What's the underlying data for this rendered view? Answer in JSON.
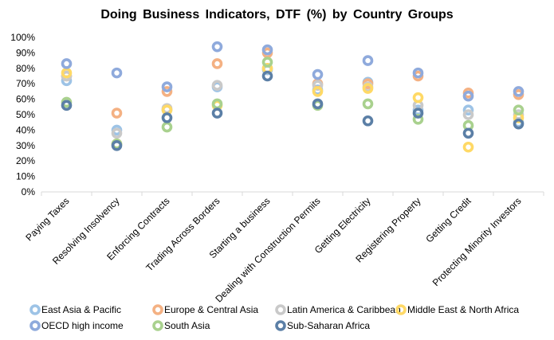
{
  "chart_data": {
    "type": "scatter",
    "title": "Doing Business Indicators, DTF (%) by Country Groups",
    "xlabel": "",
    "ylabel": "",
    "ylim": [
      0,
      100
    ],
    "y_ticks": [
      "0%",
      "10%",
      "20%",
      "30%",
      "40%",
      "50%",
      "60%",
      "70%",
      "80%",
      "90%",
      "100%"
    ],
    "grid": false,
    "legend_position": "bottom",
    "categories": [
      "Paying Taxes",
      "Resolving Insolvency",
      "Enforcing Contracts",
      "Trading Across Borders",
      "Starting a business",
      "Dealing with Construction Permits",
      "Getting Electricity",
      "Registering Property",
      "Getting Credit",
      "Protecting Minority Investors"
    ],
    "series": [
      {
        "name": "East Asia & Pacific",
        "color": "#9DC3E6",
        "values": [
          72,
          40,
          53,
          68,
          79,
          66,
          71,
          53,
          53,
          45
        ]
      },
      {
        "name": "Europe & Central Asia",
        "color": "#F4B183",
        "values": [
          75,
          51,
          65,
          83,
          90,
          70,
          70,
          75,
          64,
          63
        ]
      },
      {
        "name": "Latin America & Caribbean",
        "color": "#C9C9C9",
        "values": [
          75,
          38,
          54,
          69,
          80,
          69,
          68,
          56,
          50,
          50
        ]
      },
      {
        "name": "Middle East & North Africa",
        "color": "#FFD966",
        "values": [
          77,
          31,
          53,
          56,
          80,
          65,
          67,
          61,
          29,
          48
        ]
      },
      {
        "name": "OECD high income",
        "color": "#8FAADC",
        "values": [
          83,
          77,
          68,
          94,
          92,
          76,
          85,
          77,
          62,
          65
        ]
      },
      {
        "name": "South Asia",
        "color": "#A9D18E",
        "values": [
          58,
          31,
          42,
          57,
          84,
          56,
          57,
          47,
          43,
          53
        ]
      },
      {
        "name": "Sub-Saharan Africa",
        "color": "#5B7FA6",
        "values": [
          56,
          30,
          48,
          51,
          75,
          57,
          46,
          51,
          38,
          44
        ]
      }
    ]
  }
}
